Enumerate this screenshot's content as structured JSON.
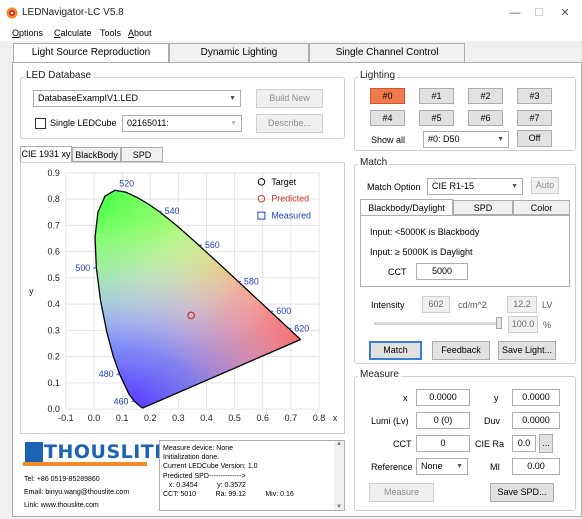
{
  "window": {
    "title": "LEDNavigator-LC V5.8",
    "controls": [
      "—",
      "☐",
      "✕"
    ]
  },
  "menu": {
    "items": [
      {
        "label": "Options",
        "accel": "O",
        "rest": "ptions"
      },
      {
        "label": "Calculate",
        "accel": "C",
        "rest": "alculate"
      },
      {
        "label": "Tools",
        "accel": "",
        "rest": "Tools"
      },
      {
        "label": "About",
        "accel": "A",
        "rest": "bout"
      }
    ]
  },
  "main_tabs": [
    "Light Source Reproduction",
    "Dynamic Lighting",
    "Single Channel Control"
  ],
  "led_database": {
    "title": "LED Database",
    "database_file": "DatabaseExampIV1.LED",
    "build_new_label": "Build New",
    "single_ledcube_label": "Single LEDCube",
    "ledcube_id": "02165011:",
    "describe_label": "Describe..."
  },
  "chart_tabs": [
    "CIE 1931 xy",
    "BlackBody",
    "SPD"
  ],
  "chart_data": {
    "type": "scatter",
    "title": "",
    "xlabel": "x",
    "ylabel": "y",
    "xlim": [
      -0.1,
      0.8
    ],
    "ylim": [
      0.0,
      0.9
    ],
    "x_ticks": [
      "-0.1",
      "0.0",
      "0.1",
      "0.2",
      "0.3",
      "0.4",
      "0.5",
      "0.6",
      "0.7",
      "0.8"
    ],
    "y_ticks": [
      "0.0",
      "0.1",
      "0.2",
      "0.3",
      "0.4",
      "0.5",
      "0.6",
      "0.7",
      "0.8",
      "0.9"
    ],
    "grid": true,
    "legend": {
      "placement": "top-right",
      "entries": [
        "Target",
        "Predicted",
        "Measured"
      ]
    },
    "wavelength_labels": [
      {
        "label": "460",
        "x": 0.144,
        "y": 0.03
      },
      {
        "label": "480",
        "x": 0.091,
        "y": 0.133
      },
      {
        "label": "500",
        "x": 0.008,
        "y": 0.538
      },
      {
        "label": "520",
        "x": 0.074,
        "y": 0.834
      },
      {
        "label": "540",
        "x": 0.23,
        "y": 0.754
      },
      {
        "label": "560",
        "x": 0.373,
        "y": 0.625
      },
      {
        "label": "580",
        "x": 0.512,
        "y": 0.487
      },
      {
        "label": "600",
        "x": 0.627,
        "y": 0.373
      },
      {
        "label": "620",
        "x": 0.691,
        "y": 0.308
      }
    ],
    "spectral_locus": [
      [
        0.1741,
        0.005
      ],
      [
        0.1738,
        0.0049
      ],
      [
        0.1733,
        0.0048
      ],
      [
        0.1726,
        0.0048
      ],
      [
        0.1714,
        0.0051
      ],
      [
        0.1689,
        0.0069
      ],
      [
        0.1644,
        0.0109
      ],
      [
        0.1566,
        0.0177
      ],
      [
        0.144,
        0.0297
      ],
      [
        0.1241,
        0.0578
      ],
      [
        0.0913,
        0.1327
      ],
      [
        0.0687,
        0.2007
      ],
      [
        0.0454,
        0.295
      ],
      [
        0.0235,
        0.4127
      ],
      [
        0.0082,
        0.5384
      ],
      [
        0.0039,
        0.6548
      ],
      [
        0.0139,
        0.7502
      ],
      [
        0.0389,
        0.812
      ],
      [
        0.0743,
        0.8338
      ],
      [
        0.1142,
        0.8262
      ],
      [
        0.1547,
        0.8059
      ],
      [
        0.1929,
        0.7816
      ],
      [
        0.2296,
        0.7543
      ],
      [
        0.2658,
        0.7243
      ],
      [
        0.3016,
        0.6923
      ],
      [
        0.3373,
        0.6589
      ],
      [
        0.3731,
        0.6245
      ],
      [
        0.4087,
        0.5896
      ],
      [
        0.4441,
        0.5547
      ],
      [
        0.4788,
        0.5202
      ],
      [
        0.5125,
        0.4866
      ],
      [
        0.5448,
        0.4544
      ],
      [
        0.5752,
        0.4242
      ],
      [
        0.6029,
        0.3965
      ],
      [
        0.627,
        0.3725
      ],
      [
        0.6482,
        0.3514
      ],
      [
        0.6658,
        0.334
      ],
      [
        0.6801,
        0.3197
      ],
      [
        0.6915,
        0.3083
      ],
      [
        0.7006,
        0.2993
      ],
      [
        0.7079,
        0.292
      ],
      [
        0.714,
        0.2859
      ],
      [
        0.719,
        0.2809
      ],
      [
        0.723,
        0.277
      ],
      [
        0.726,
        0.274
      ],
      [
        0.7283,
        0.2717
      ],
      [
        0.73,
        0.27
      ],
      [
        0.7311,
        0.2689
      ],
      [
        0.732,
        0.268
      ],
      [
        0.7327,
        0.2673
      ],
      [
        0.7334,
        0.2666
      ],
      [
        0.734,
        0.266
      ],
      [
        0.7344,
        0.2656
      ],
      [
        0.7347,
        0.2653
      ]
    ],
    "points": [
      {
        "series": "Predicted",
        "x": 0.3454,
        "y": 0.3572
      }
    ]
  },
  "logo": {
    "text": "THOUSLITE",
    "letter": "T"
  },
  "contact": {
    "tel": "Tel: +86 0519-85289860",
    "email": "Email: binyu.wang@thouslite.com",
    "link": "Link: www.thouslite.com"
  },
  "log_lines": [
    "Measure device:  None",
    "Initialization done.",
    "Current LEDCube Version: 1.0",
    "Predicted SPD-------------->",
    "   x: 0.3454          y: 0.3572",
    "CCT: 5010          Ra: 99.12          Miv: 0.16"
  ],
  "lighting": {
    "title": "Lighting",
    "buttons": [
      "#0",
      "#1",
      "#2",
      "#3",
      "#4",
      "#5",
      "#6",
      "#7"
    ],
    "active_index": 0,
    "show_all_label": "Show all",
    "show_all_value": "#0: D50",
    "off_label": "Off"
  },
  "match": {
    "title": "Match",
    "option_label": "Match Option",
    "option_value": "CIE R1-15",
    "auto_label": "Auto",
    "tabs": [
      "Blackbody/Daylight",
      "SPD",
      "Color"
    ],
    "info_1": "Input: <5000K is Blackbody",
    "info_2": "Input: ≥ 5000K is Daylight",
    "cct_label": "CCT",
    "cct_value": "5000",
    "intensity_label": "Intensity",
    "intensity_value": "602",
    "intensity_unit": "cd/m^2",
    "lv_value": "12.2",
    "lv_unit": "LV",
    "slider_percent": 100,
    "percent_value": "100.0",
    "percent_unit": "%",
    "match_label": "Match",
    "feedback_label": "Feedback",
    "save_light_label": "Save Light..."
  },
  "measure": {
    "title": "Measure",
    "x_label": "x",
    "x_value": "0.0000",
    "y_label": "y",
    "y_value": "0.0000",
    "lumi_label": "Lumi (Lv)",
    "lumi_value": "0 (0)",
    "duv_label": "Duv",
    "duv_value": "0.0000",
    "cct_label": "CCT",
    "cct_value": "0",
    "cie_ra_label": "CIE Ra",
    "cie_ra_value": "0.0",
    "cie_ra_more": "...",
    "reference_label": "Reference",
    "reference_value": "None",
    "mi_label": "MI",
    "mi_value": "0.00",
    "measure_label": "Measure",
    "save_spd_label": "Save SPD..."
  },
  "colors": {
    "accent_active": "#f07a4a",
    "predicted": "#c0392b",
    "measured": "#1f3fbf",
    "logo_blue": "#1d63b4",
    "logo_orange": "#f28c28"
  }
}
